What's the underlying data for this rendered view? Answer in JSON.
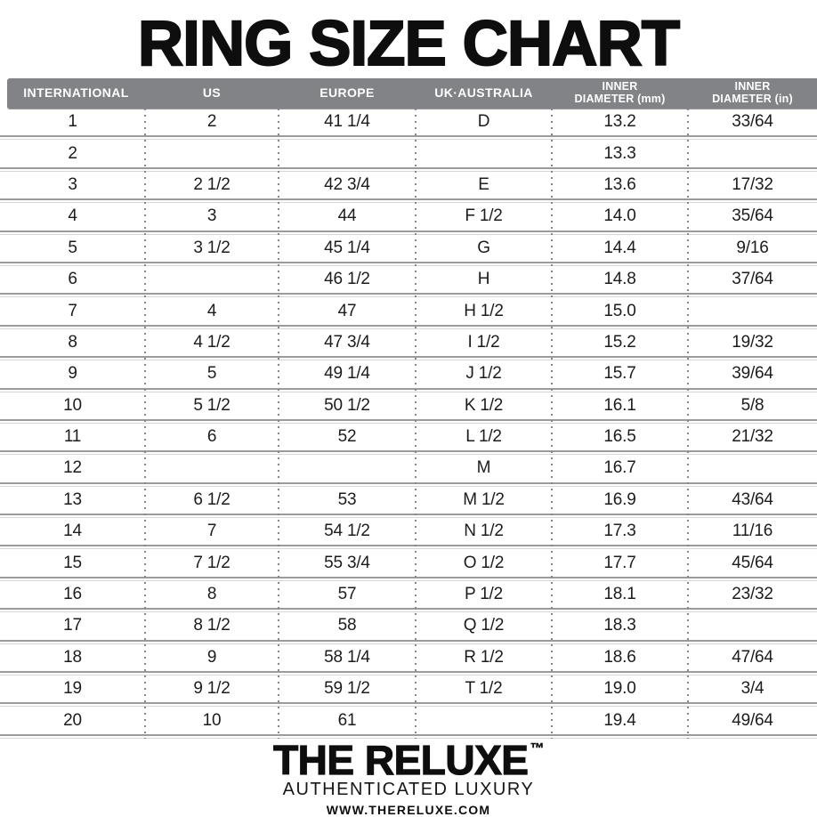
{
  "chart_data": {
    "type": "table",
    "title": "RING SIZE CHART",
    "columns": [
      [
        "INTERNATIONAL"
      ],
      [
        "US"
      ],
      [
        "EUROPE"
      ],
      [
        "UK·AUSTRALIA"
      ],
      [
        "INNER",
        "DIAMETER (mm)"
      ],
      [
        "INNER",
        "DIAMETER (in)"
      ]
    ],
    "rows": [
      [
        "1",
        "2",
        "41 1/4",
        "D",
        "13.2",
        "33/64"
      ],
      [
        "2",
        "",
        "",
        "",
        "13.3",
        ""
      ],
      [
        "3",
        "2 1/2",
        "42 3/4",
        "E",
        "13.6",
        "17/32"
      ],
      [
        "4",
        "3",
        "44",
        "F 1/2",
        "14.0",
        "35/64"
      ],
      [
        "5",
        "3 1/2",
        "45 1/4",
        "G",
        "14.4",
        "9/16"
      ],
      [
        "6",
        "",
        "46 1/2",
        "H",
        "14.8",
        "37/64"
      ],
      [
        "7",
        "4",
        "47",
        "H 1/2",
        "15.0",
        ""
      ],
      [
        "8",
        "4 1/2",
        "47 3/4",
        "I 1/2",
        "15.2",
        "19/32"
      ],
      [
        "9",
        "5",
        "49 1/4",
        "J 1/2",
        "15.7",
        "39/64"
      ],
      [
        "10",
        "5 1/2",
        "50 1/2",
        "K 1/2",
        "16.1",
        "5/8"
      ],
      [
        "11",
        "6",
        "52",
        "L 1/2",
        "16.5",
        "21/32"
      ],
      [
        "12",
        "",
        "",
        "M",
        "16.7",
        ""
      ],
      [
        "13",
        "6 1/2",
        "53",
        "M 1/2",
        "16.9",
        "43/64"
      ],
      [
        "14",
        "7",
        "54 1/2",
        "N 1/2",
        "17.3",
        "11/16"
      ],
      [
        "15",
        "7 1/2",
        "55 3/4",
        "O 1/2",
        "17.7",
        "45/64"
      ],
      [
        "16",
        "8",
        "57",
        "P 1/2",
        "18.1",
        "23/32"
      ],
      [
        "17",
        "8 1/2",
        "58",
        "Q 1/2",
        "18.3",
        ""
      ],
      [
        "18",
        "9",
        "58 1/4",
        "R 1/2",
        "18.6",
        "47/64"
      ],
      [
        "19",
        "9 1/2",
        "59 1/2",
        "T 1/2",
        "19.0",
        "3/4"
      ],
      [
        "20",
        "10",
        "61",
        "",
        "19.4",
        "49/64"
      ]
    ]
  },
  "footer": {
    "brand": "THE RELUXE",
    "trademark": "™",
    "tagline": "AUTHENTICATED LUXURY",
    "website": "WWW.THERELUXE.COM"
  },
  "colors": {
    "header_bg": "#818386",
    "header_text": "#ffffff",
    "body_text": "#1c1c1c",
    "rule_dark": "#9b9b9d",
    "rule_light": "#d6d6d6",
    "dots": "#86868a",
    "ink": "#0e0e0e"
  }
}
